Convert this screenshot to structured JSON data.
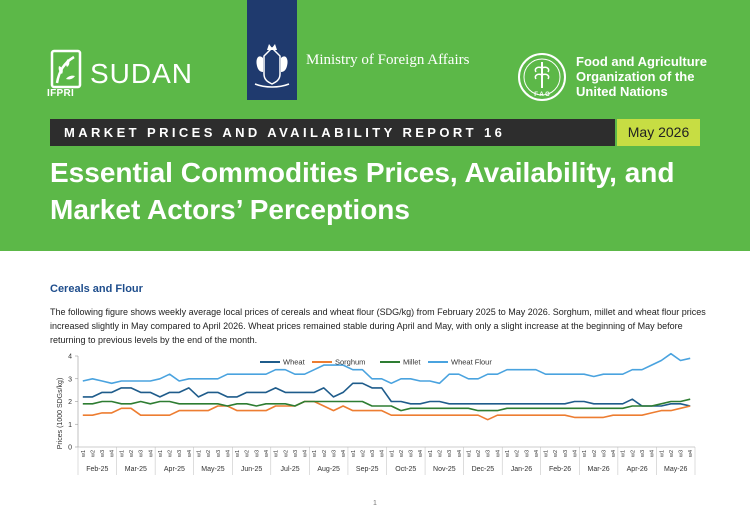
{
  "header": {
    "ifpri_label": "IFPRI",
    "sudan_label": "SUDAN",
    "ministry_label": "Ministry of Foreign Affairs",
    "fao_lines": [
      "Food and Agriculture",
      "Organization of the",
      "United Nations"
    ],
    "fao_logo_letters": "F A O",
    "report_title": "MARKET PRICES AND AVAILABILITY REPORT 16",
    "report_date": "May 2026",
    "main_title_line1": "Essential Commodities Prices, Availability, and",
    "main_title_line2": "Market Actors’ Perceptions",
    "colors": {
      "header_green": "#5cb848",
      "crest_blue": "#1f3a6e",
      "date_badge": "#c7dd43"
    }
  },
  "section": {
    "heading": "Cereals and Flour",
    "body": "The following figure shows weekly average local prices of cereals and wheat flour (SDG/kg) from February 2025 to May 2026. Sorghum, millet and wheat flour prices increased slightly in May compared to April 2026. Wheat prices remained stable during April and May, with only a slight increase at the beginning of May before returning to previous levels by the end of the month."
  },
  "chart_data": {
    "type": "line",
    "ylabel": "Prices (1000 SDGs/kg)",
    "ylim": [
      0,
      4
    ],
    "yticks": [
      0,
      1,
      2,
      3,
      4
    ],
    "week_labels": [
      "w1",
      "w2",
      "w3",
      "w4"
    ],
    "months": [
      "Feb-25",
      "Mar-25",
      "Apr-25",
      "May-25",
      "Jun-25",
      "Jul-25",
      "Aug-25",
      "Sep-25",
      "Oct-25",
      "Nov-25",
      "Dec-25",
      "Jan-26",
      "Feb-26",
      "Mar-26",
      "Apr-26",
      "May-26"
    ],
    "legend_position": "top",
    "series": [
      {
        "name": "Wheat",
        "color": "#1f5c8b",
        "values": [
          2.2,
          2.2,
          2.4,
          2.4,
          2.6,
          2.6,
          2.4,
          2.4,
          2.2,
          2.4,
          2.4,
          2.6,
          2.2,
          2.4,
          2.4,
          2.2,
          2.2,
          2.4,
          2.4,
          2.4,
          2.6,
          2.4,
          2.4,
          2.4,
          2.4,
          2.6,
          2.2,
          2.4,
          2.8,
          2.8,
          2.6,
          2.6,
          2.0,
          2.0,
          1.9,
          1.9,
          2.0,
          2.0,
          1.9,
          1.9,
          1.9,
          1.9,
          1.9,
          1.9,
          1.9,
          1.9,
          1.9,
          1.9,
          1.9,
          1.9,
          1.9,
          2.0,
          2.0,
          1.9,
          1.9,
          1.9,
          1.9,
          2.1,
          1.8,
          1.8,
          1.8,
          1.9,
          1.9,
          1.8
        ]
      },
      {
        "name": "Sorghum",
        "color": "#ed7d31",
        "values": [
          1.4,
          1.4,
          1.5,
          1.5,
          1.7,
          1.7,
          1.4,
          1.4,
          1.4,
          1.4,
          1.6,
          1.6,
          1.6,
          1.6,
          1.8,
          1.8,
          1.6,
          1.6,
          1.6,
          1.6,
          1.8,
          1.8,
          1.8,
          2.0,
          2.0,
          1.8,
          1.6,
          1.8,
          1.6,
          1.6,
          1.6,
          1.6,
          1.4,
          1.4,
          1.4,
          1.4,
          1.4,
          1.4,
          1.4,
          1.4,
          1.4,
          1.4,
          1.2,
          1.4,
          1.4,
          1.4,
          1.4,
          1.4,
          1.4,
          1.4,
          1.4,
          1.3,
          1.3,
          1.3,
          1.3,
          1.4,
          1.4,
          1.4,
          1.4,
          1.5,
          1.6,
          1.6,
          1.7,
          1.8
        ]
      },
      {
        "name": "Millet",
        "color": "#2e7d32",
        "values": [
          1.9,
          1.9,
          2.0,
          2.0,
          1.9,
          1.9,
          2.0,
          1.9,
          2.0,
          2.0,
          1.9,
          1.9,
          1.9,
          1.9,
          1.9,
          1.8,
          1.9,
          1.9,
          1.8,
          1.9,
          1.9,
          1.9,
          1.8,
          2.0,
          2.0,
          2.0,
          2.0,
          2.0,
          2.0,
          2.0,
          1.8,
          1.8,
          1.8,
          1.6,
          1.7,
          1.7,
          1.7,
          1.7,
          1.7,
          1.7,
          1.7,
          1.6,
          1.6,
          1.6,
          1.7,
          1.7,
          1.7,
          1.7,
          1.7,
          1.7,
          1.7,
          1.7,
          1.7,
          1.7,
          1.7,
          1.7,
          1.7,
          1.8,
          1.8,
          1.8,
          1.9,
          2.0,
          2.0,
          2.1
        ]
      },
      {
        "name": "Wheat Flour",
        "color": "#4aa3df",
        "values": [
          2.9,
          3.0,
          2.9,
          2.8,
          2.9,
          2.9,
          2.9,
          2.9,
          3.0,
          3.2,
          2.9,
          3.0,
          3.0,
          3.0,
          3.0,
          3.2,
          3.2,
          3.2,
          3.2,
          3.2,
          3.4,
          3.4,
          3.2,
          3.2,
          3.4,
          3.6,
          3.6,
          3.6,
          3.4,
          3.4,
          3.0,
          3.0,
          2.8,
          3.0,
          3.0,
          2.9,
          2.9,
          2.8,
          3.2,
          3.2,
          3.0,
          3.0,
          3.2,
          3.2,
          3.4,
          3.4,
          3.4,
          3.4,
          3.2,
          3.2,
          3.2,
          3.2,
          3.2,
          3.1,
          3.2,
          3.2,
          3.2,
          3.4,
          3.4,
          3.6,
          3.8,
          4.1,
          3.8,
          3.9
        ]
      }
    ]
  },
  "page_number": "1"
}
